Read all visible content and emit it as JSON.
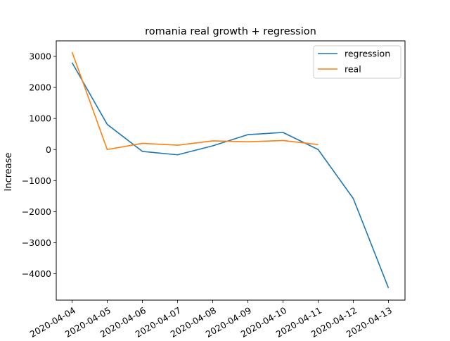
{
  "chart_data": {
    "type": "line",
    "title": "romania real growth + regression",
    "xlabel": "",
    "ylabel": "Increase",
    "categories": [
      "2020-04-04",
      "2020-04-05",
      "2020-04-06",
      "2020-04-07",
      "2020-04-08",
      "2020-04-09",
      "2020-04-10",
      "2020-04-11",
      "2020-04-12",
      "2020-04-13"
    ],
    "yticks": [
      -4000,
      -3000,
      -2000,
      -1000,
      0,
      1000,
      2000,
      3000
    ],
    "ytick_labels": [
      "−4000",
      "−3000",
      "−2000",
      "−1000",
      "0",
      "1000",
      "2000",
      "3000"
    ],
    "ylim": [
      -4850,
      3500
    ],
    "grid": false,
    "legend_position": "top-right",
    "series": [
      {
        "name": "regression",
        "color": "#1f77b4",
        "values": [
          2800,
          810,
          -60,
          -170,
          120,
          480,
          550,
          0,
          -1580,
          -4460
        ]
      },
      {
        "name": "real",
        "color": "#ff7f0e",
        "values": [
          3140,
          0,
          200,
          140,
          280,
          250,
          290,
          160,
          null,
          null
        ]
      }
    ]
  }
}
